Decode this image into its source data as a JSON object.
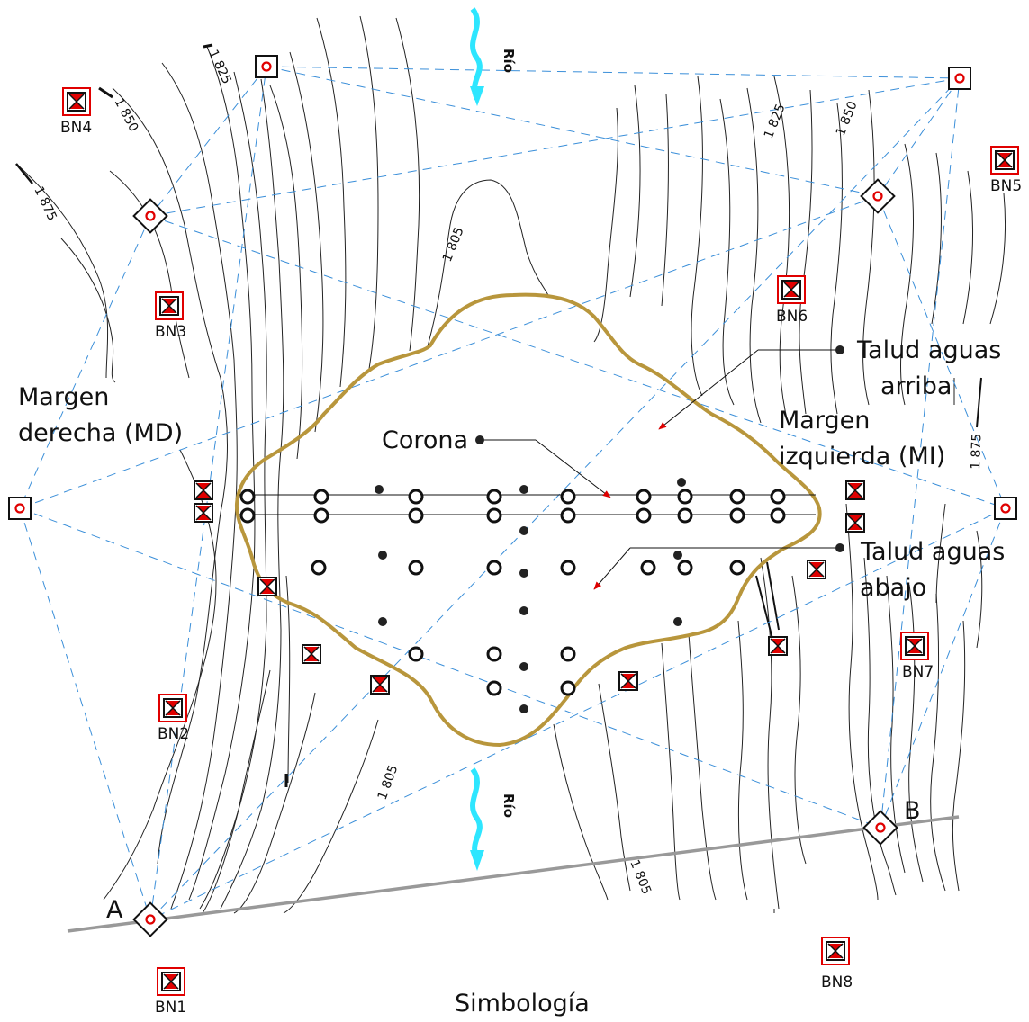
{
  "labels": {
    "margen_derecha_1": "Margen",
    "margen_derecha_2": "derecha (MD)",
    "margen_izquierda_1": "Margen",
    "margen_izquierda_2": "izquierda (MI)",
    "corona": "Corona",
    "talud_arriba_1": "Talud aguas",
    "talud_arriba_2": "arriba",
    "talud_abajo_1": "Talud aguas",
    "talud_abajo_2": "abajo",
    "point_a": "A",
    "point_b": "B",
    "simbologia": "Simbología",
    "rio_top": "Río",
    "rio_bottom": "Río"
  },
  "contour_labels": {
    "c1825_left": "1 825",
    "c1850_left": "1 850",
    "c1875_left": "1 875",
    "c1805_center": "1 805",
    "c1825_right": "1 825",
    "c1850_right": "1 850",
    "c1875_right": "1 875",
    "c1805_bottom": "1 805",
    "c1805_bottom_right": "1 805"
  },
  "benchmarks": {
    "bn1": "BN1",
    "bn2": "BN2",
    "bn3": "BN3",
    "bn4": "BN4",
    "bn5": "BN5",
    "bn6": "BN6",
    "bn7": "BN7",
    "bn8": "BN8"
  },
  "colors": {
    "reservoir": "#b8963c",
    "sightline": "#3b8fd9",
    "target": "#e00000",
    "arrow": "#dd0000",
    "river": "#2ee6ff",
    "baseline": "#999999"
  }
}
